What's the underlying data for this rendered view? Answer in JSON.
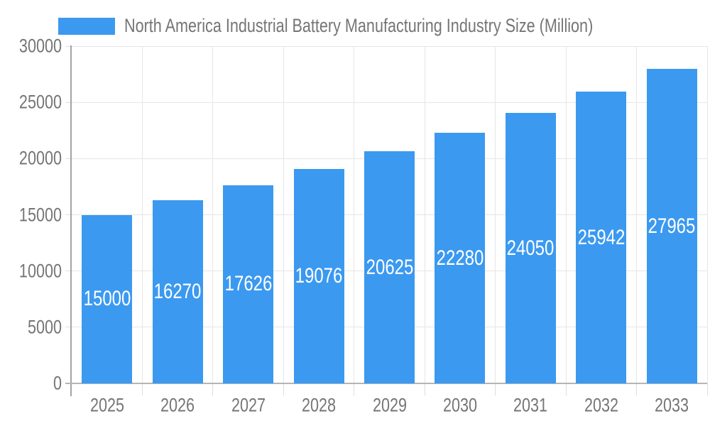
{
  "chart_data": {
    "type": "bar",
    "title": "North America Industrial Battery Manufacturing Industry Size (Million)",
    "series_name": "North America Industrial Battery Manufacturing Industry Size (Million)",
    "categories": [
      "2025",
      "2026",
      "2027",
      "2028",
      "2029",
      "2030",
      "2031",
      "2032",
      "2033"
    ],
    "values": [
      15000,
      16270,
      17626,
      19076,
      20625,
      22280,
      24050,
      25942,
      27965
    ],
    "xlabel": "",
    "ylabel": "",
    "ylim": [
      0,
      30000
    ],
    "ytick_interval": 5000,
    "yticks": [
      0,
      5000,
      10000,
      15000,
      20000,
      25000,
      30000
    ],
    "grid": true,
    "legend_position": "top-center",
    "value_labels_inside_bars": true
  },
  "colors": {
    "background": "#ffffff",
    "bar": "#3b99f0",
    "axis_text": "#757575",
    "value_label": "#ffffff",
    "gridline": "#e6e6e6",
    "tick": "#dddddd",
    "y_axis_line": "#a3a3a3",
    "x_axis_line": "#b5b5b5"
  }
}
